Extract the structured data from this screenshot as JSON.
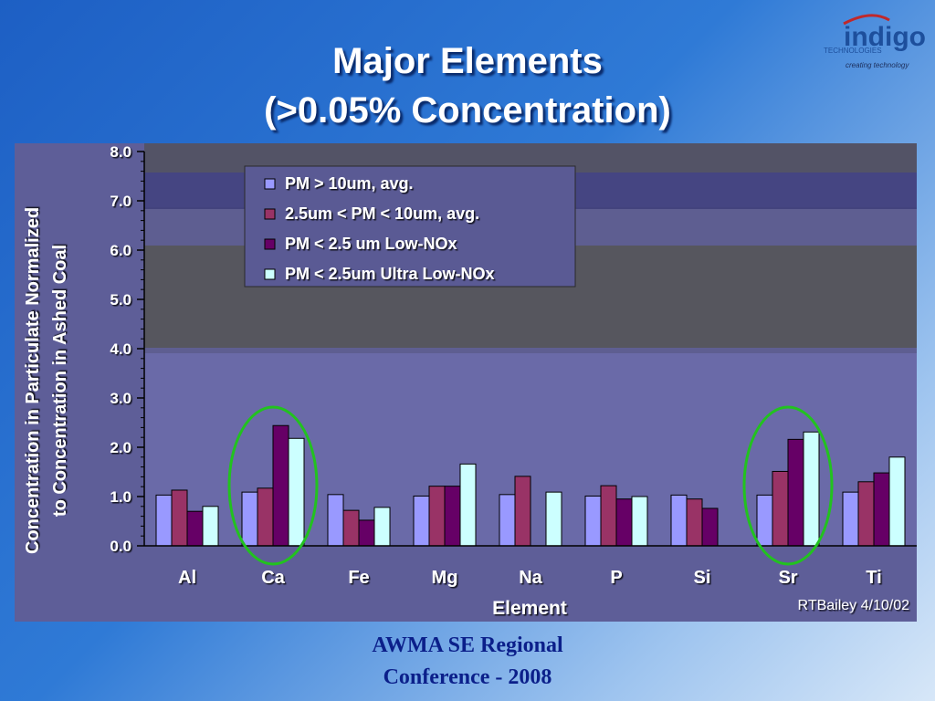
{
  "slide": {
    "title_line1": "Major Elements",
    "title_line2": "(>0.05% Concentration)",
    "footer_line1": "AWMA SE Regional",
    "footer_line2": "Conference - 2008"
  },
  "logo": {
    "name": "indigo",
    "sub": "TECHNOLOGIES",
    "tagline": "creating technology"
  },
  "colors": {
    "plot_bg": "#6868a6",
    "bar_outline": "#000000",
    "highlight_ellipse": "#22c21f",
    "label_text": "#ffffff"
  },
  "chart_data": {
    "type": "bar",
    "xlabel": "Element",
    "ylabel_line1": "Concentration in Particulate Normalized",
    "ylabel_line2": "to Concentration in Ashed Coal",
    "ylim": [
      0,
      8
    ],
    "yticks": [
      "0.0",
      "1.0",
      "2.0",
      "3.0",
      "4.0",
      "5.0",
      "6.0",
      "7.0",
      "8.0"
    ],
    "grid": false,
    "legend_position": "top-left",
    "categories": [
      "Al",
      "Ca",
      "Fe",
      "Mg",
      "Na",
      "P",
      "Si",
      "Sr",
      "Ti"
    ],
    "highlighted_categories": [
      "Ca",
      "Sr"
    ],
    "series": [
      {
        "name": "PM > 10um, avg.",
        "color": "#9999ff",
        "values": [
          1.03,
          1.09,
          1.04,
          1.01,
          1.04,
          1.01,
          1.03,
          1.03,
          1.09
        ]
      },
      {
        "name": "2.5um < PM < 10um, avg.",
        "color": "#993366",
        "values": [
          1.13,
          1.17,
          0.72,
          1.21,
          1.41,
          1.22,
          0.95,
          1.51,
          1.3
        ]
      },
      {
        "name": "PM < 2.5 um Low-NOx",
        "color": "#660066",
        "values": [
          0.7,
          2.44,
          0.52,
          1.21,
          null,
          0.95,
          0.76,
          2.16,
          1.48
        ]
      },
      {
        "name": "PM < 2.5um Ultra Low-NOx",
        "color": "#ccffff",
        "values": [
          0.8,
          2.18,
          0.78,
          1.66,
          1.09,
          1.0,
          null,
          2.31,
          1.8
        ]
      }
    ],
    "annotation": "RTBailey 4/10/02"
  }
}
